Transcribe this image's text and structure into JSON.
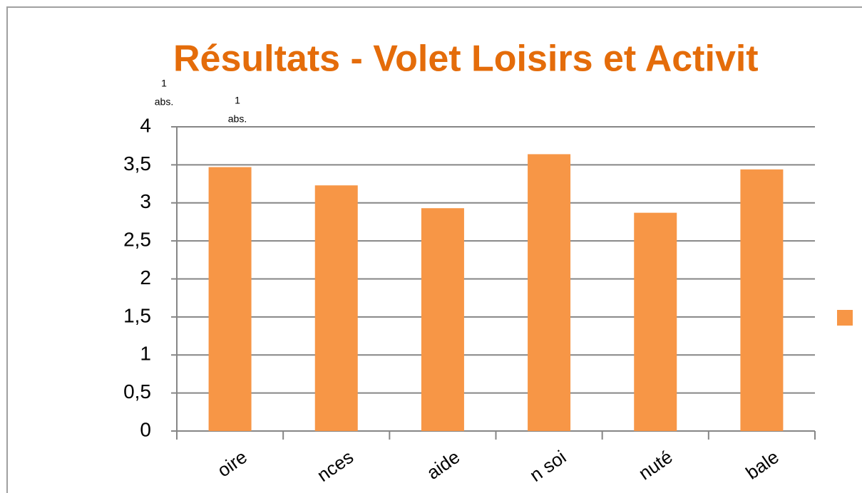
{
  "chart_data": {
    "type": "bar",
    "title": "Résultats - Volet Loisirs et Activit",
    "annotations": [
      [
        "1",
        "abs."
      ],
      [
        "1",
        "abs."
      ]
    ],
    "categories": [
      "oire",
      "nces",
      "aide",
      "n soi",
      "nuté",
      "bale"
    ],
    "values": [
      3.47,
      3.23,
      2.93,
      3.64,
      2.87,
      3.44
    ],
    "color": "#f79646",
    "ylim": [
      0,
      4
    ],
    "yticks": [
      0,
      {
        "value": 0.5,
        "label": "0,5"
      },
      1,
      {
        "value": 1.5,
        "label": "1,5"
      },
      2,
      {
        "value": 2.5,
        "label": "2,5"
      },
      3,
      {
        "value": 3.5,
        "label": "3,5"
      },
      4
    ],
    "grid": true,
    "legend": "right"
  }
}
